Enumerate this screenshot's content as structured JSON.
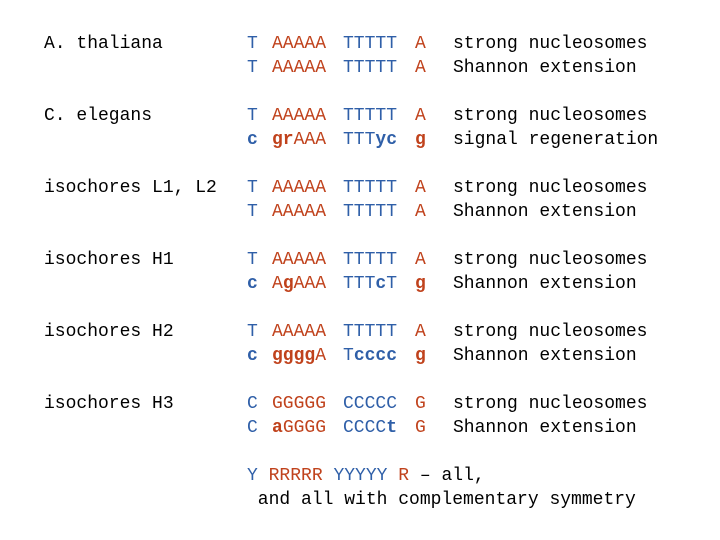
{
  "colors": {
    "blue": "#2f5fa8",
    "red": "#c0421c",
    "text": "#000000"
  },
  "rows": [
    {
      "name": "A. thaliana",
      "lines": [
        {
          "c1": [
            {
              "t": "T",
              "col": "blue",
              "var": false
            }
          ],
          "c2": [
            {
              "t": "AAAAA",
              "col": "red",
              "var": false
            }
          ],
          "c3": [
            {
              "t": "TTTTT",
              "col": "blue",
              "var": false
            }
          ],
          "c4": [
            {
              "t": "A",
              "col": "red",
              "var": false
            }
          ],
          "note": "strong nucleosomes"
        },
        {
          "c1": [
            {
              "t": "T",
              "col": "blue",
              "var": false
            }
          ],
          "c2": [
            {
              "t": "AAAAA",
              "col": "red",
              "var": false
            }
          ],
          "c3": [
            {
              "t": "TTTTT",
              "col": "blue",
              "var": false
            }
          ],
          "c4": [
            {
              "t": "A",
              "col": "red",
              "var": false
            }
          ],
          "note": "Shannon extension"
        }
      ]
    },
    {
      "name": "C. elegans",
      "lines": [
        {
          "c1": [
            {
              "t": "T",
              "col": "blue",
              "var": false
            }
          ],
          "c2": [
            {
              "t": "AAAAA",
              "col": "red",
              "var": false
            }
          ],
          "c3": [
            {
              "t": "TTTTT",
              "col": "blue",
              "var": false
            }
          ],
          "c4": [
            {
              "t": "A",
              "col": "red",
              "var": false
            }
          ],
          "note": "strong nucleosomes"
        },
        {
          "c1": [
            {
              "t": "c",
              "col": "blue",
              "var": true
            }
          ],
          "c2": [
            {
              "t": "gr",
              "col": "red",
              "var": true
            },
            {
              "t": "AAA",
              "col": "red",
              "var": false
            }
          ],
          "c3": [
            {
              "t": "TTT",
              "col": "blue",
              "var": false
            },
            {
              "t": "yc",
              "col": "blue",
              "var": true
            }
          ],
          "c4": [
            {
              "t": "g",
              "col": "red",
              "var": true
            }
          ],
          "note": "signal regeneration"
        }
      ]
    },
    {
      "name": "isochores L1, L2",
      "lines": [
        {
          "c1": [
            {
              "t": "T",
              "col": "blue",
              "var": false
            }
          ],
          "c2": [
            {
              "t": "AAAAA",
              "col": "red",
              "var": false
            }
          ],
          "c3": [
            {
              "t": "TTTTT",
              "col": "blue",
              "var": false
            }
          ],
          "c4": [
            {
              "t": "A",
              "col": "red",
              "var": false
            }
          ],
          "note": "strong nucleosomes"
        },
        {
          "c1": [
            {
              "t": "T",
              "col": "blue",
              "var": false
            }
          ],
          "c2": [
            {
              "t": "AAAAA",
              "col": "red",
              "var": false
            }
          ],
          "c3": [
            {
              "t": "TTTTT",
              "col": "blue",
              "var": false
            }
          ],
          "c4": [
            {
              "t": "A",
              "col": "red",
              "var": false
            }
          ],
          "note": "Shannon extension"
        }
      ]
    },
    {
      "name": "isochores H1",
      "lines": [
        {
          "c1": [
            {
              "t": "T",
              "col": "blue",
              "var": false
            }
          ],
          "c2": [
            {
              "t": "AAAAA",
              "col": "red",
              "var": false
            }
          ],
          "c3": [
            {
              "t": "TTTTT",
              "col": "blue",
              "var": false
            }
          ],
          "c4": [
            {
              "t": "A",
              "col": "red",
              "var": false
            }
          ],
          "note": "strong nucleosomes"
        },
        {
          "c1": [
            {
              "t": "c",
              "col": "blue",
              "var": true
            }
          ],
          "c2": [
            {
              "t": "A",
              "col": "red",
              "var": false
            },
            {
              "t": "g",
              "col": "red",
              "var": true
            },
            {
              "t": "AAA",
              "col": "red",
              "var": false
            }
          ],
          "c3": [
            {
              "t": "TTT",
              "col": "blue",
              "var": false
            },
            {
              "t": "c",
              "col": "blue",
              "var": true
            },
            {
              "t": "T",
              "col": "blue",
              "var": false
            }
          ],
          "c4": [
            {
              "t": "g",
              "col": "red",
              "var": true
            }
          ],
          "note": "Shannon extension"
        }
      ]
    },
    {
      "name": "isochores H2",
      "lines": [
        {
          "c1": [
            {
              "t": "T",
              "col": "blue",
              "var": false
            }
          ],
          "c2": [
            {
              "t": "AAAAA",
              "col": "red",
              "var": false
            }
          ],
          "c3": [
            {
              "t": "TTTTT",
              "col": "blue",
              "var": false
            }
          ],
          "c4": [
            {
              "t": "A",
              "col": "red",
              "var": false
            }
          ],
          "note": "strong nucleosomes"
        },
        {
          "c1": [
            {
              "t": "c",
              "col": "blue",
              "var": true
            }
          ],
          "c2": [
            {
              "t": "gggg",
              "col": "red",
              "var": true
            },
            {
              "t": "A",
              "col": "red",
              "var": false
            }
          ],
          "c3": [
            {
              "t": "T",
              "col": "blue",
              "var": false
            },
            {
              "t": "cccc",
              "col": "blue",
              "var": true
            }
          ],
          "c4": [
            {
              "t": "g",
              "col": "red",
              "var": true
            }
          ],
          "note": "Shannon extension"
        }
      ]
    },
    {
      "name": "isochores H3",
      "lines": [
        {
          "c1": [
            {
              "t": "C",
              "col": "blue",
              "var": false
            }
          ],
          "c2": [
            {
              "t": "GGGGG",
              "col": "red",
              "var": false
            }
          ],
          "c3": [
            {
              "t": "CCCCC",
              "col": "blue",
              "var": false
            }
          ],
          "c4": [
            {
              "t": "G",
              "col": "red",
              "var": false
            }
          ],
          "note": "strong nucleosomes"
        },
        {
          "c1": [
            {
              "t": "C",
              "col": "blue",
              "var": false
            }
          ],
          "c2": [
            {
              "t": "a",
              "col": "red",
              "var": true
            },
            {
              "t": "GGGG",
              "col": "red",
              "var": false
            }
          ],
          "c3": [
            {
              "t": "CCCC",
              "col": "blue",
              "var": false
            },
            {
              "t": "t",
              "col": "blue",
              "var": true
            }
          ],
          "c4": [
            {
              "t": "G",
              "col": "red",
              "var": false
            }
          ],
          "note": "Shannon extension"
        }
      ]
    }
  ],
  "footer": {
    "line1_parts": [
      {
        "t": "Y",
        "col": "blue"
      },
      {
        "t": " ",
        "col": "text"
      },
      {
        "t": "RRRRR",
        "col": "red"
      },
      {
        "t": " ",
        "col": "text"
      },
      {
        "t": "YYYYY",
        "col": "blue"
      },
      {
        "t": " ",
        "col": "text"
      },
      {
        "t": "R",
        "col": "red"
      },
      {
        "t": " – all,",
        "col": "text"
      }
    ],
    "line2": " and all with complementary symmetry"
  }
}
